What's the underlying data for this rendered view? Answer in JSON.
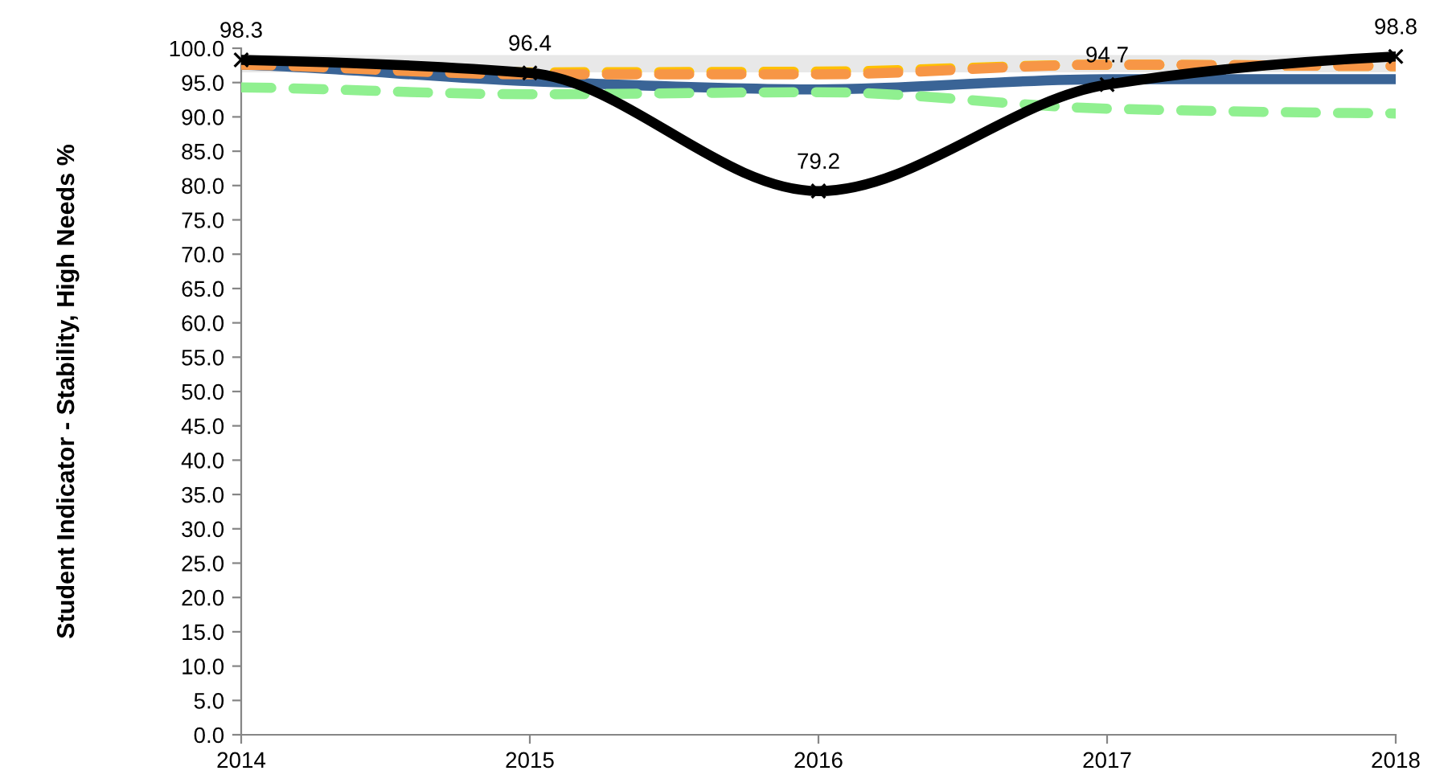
{
  "chart_data": {
    "type": "line",
    "ylabel": "Student Indicator - Stability, High Needs %",
    "x": [
      2014,
      2015,
      2016,
      2017,
      2018
    ],
    "xlim": [
      2014,
      2018
    ],
    "xticks": [
      2014,
      2015,
      2016,
      2017,
      2018
    ],
    "ylim": [
      0,
      100
    ],
    "yticks": [
      {
        "value": 0,
        "label": "0.0"
      },
      {
        "value": 5,
        "label": "5.0"
      },
      {
        "value": 10,
        "label": "10.0"
      },
      {
        "value": 15,
        "label": "15.0"
      },
      {
        "value": 20,
        "label": "20.0"
      },
      {
        "value": 25,
        "label": "25.0"
      },
      {
        "value": 30,
        "label": "30.0"
      },
      {
        "value": 35,
        "label": "35.0"
      },
      {
        "value": 40,
        "label": "40.0"
      },
      {
        "value": 45,
        "label": "45.0"
      },
      {
        "value": 50,
        "label": "50.0"
      },
      {
        "value": 55,
        "label": "55.0"
      },
      {
        "value": 60,
        "label": "60.0"
      },
      {
        "value": 65,
        "label": "65.0"
      },
      {
        "value": 70,
        "label": "70.0"
      },
      {
        "value": 75,
        "label": "75.0"
      },
      {
        "value": 80,
        "label": "80.0"
      },
      {
        "value": 85,
        "label": "85.0"
      },
      {
        "value": 90,
        "label": "90.0"
      },
      {
        "value": 95,
        "label": "95.0"
      },
      {
        "value": 100,
        "label": "100.0"
      }
    ],
    "grid": false,
    "bands": [
      {
        "axis": "y",
        "from": 96.5,
        "to": 99,
        "color": "#e8e8e8"
      }
    ],
    "series": [
      {
        "color": "#3a6496",
        "values": [
          97.6,
          95.2,
          94.0,
          95.5,
          95.5
        ],
        "line_style": "solid",
        "marker": "none"
      },
      {
        "color": "#90f090",
        "values": [
          94.3,
          93.3,
          93.6,
          91.2,
          90.5
        ],
        "line_style": "dashed",
        "marker": "none"
      },
      {
        "color": "#ffc000",
        "values": [
          97.8,
          96.5,
          96.6,
          97.6,
          97.4
        ],
        "line_style": "dashed",
        "marker": "none"
      },
      {
        "color": "#f79646",
        "values": [
          97.6,
          96.2,
          96.2,
          97.6,
          97.4
        ],
        "line_style": "dashed",
        "marker": "none"
      },
      {
        "color": "#000000",
        "values": [
          98.3,
          96.4,
          79.2,
          94.7,
          98.8
        ],
        "line_style": "solid",
        "marker": "cross",
        "data_labels": true
      }
    ]
  }
}
